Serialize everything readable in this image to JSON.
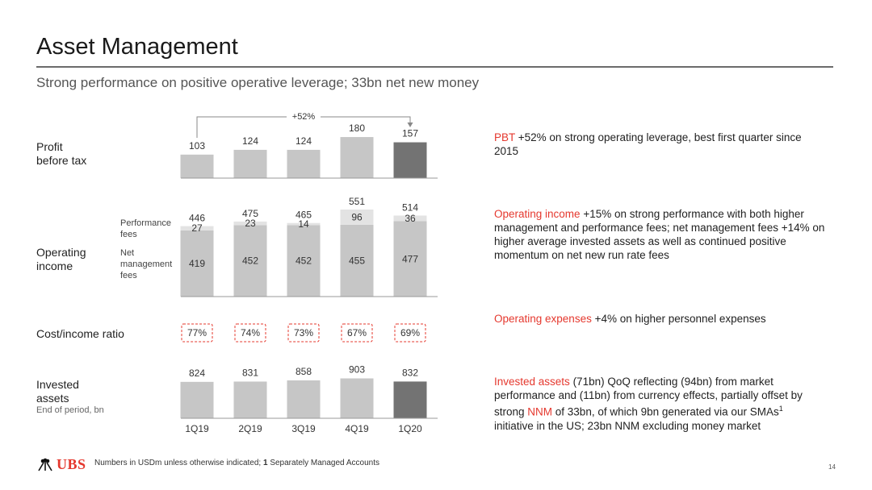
{
  "title": "Asset Management",
  "subtitle": "Strong performance on positive operative leverage; 33bn net new money",
  "row_labels": {
    "pbt": [
      "Profit",
      "before tax"
    ],
    "opinc": [
      "Operating",
      "income"
    ],
    "perf_fees": [
      "Performance",
      "fees"
    ],
    "net_mgmt_fees": [
      "Net",
      "management",
      "fees"
    ],
    "cir": "Cost/income ratio",
    "invested": [
      "Invested",
      "assets"
    ],
    "invested_sub": "End of period, bn"
  },
  "chart_data": [
    {
      "type": "bar",
      "categories": [
        "1Q19",
        "2Q19",
        "3Q19",
        "4Q19",
        "1Q20"
      ],
      "values": [
        103,
        124,
        124,
        180,
        157
      ],
      "annotation": "+52%",
      "highlight_last": true
    },
    {
      "type": "bar",
      "stacked": true,
      "categories": [
        "1Q19",
        "2Q19",
        "3Q19",
        "4Q19",
        "1Q20"
      ],
      "totals": [
        446,
        475,
        465,
        551,
        514
      ],
      "series": [
        {
          "name": "Net management fees",
          "values": [
            419,
            452,
            452,
            455,
            477
          ]
        },
        {
          "name": "Performance fees",
          "values": [
            27,
            23,
            14,
            96,
            36
          ]
        }
      ]
    },
    {
      "type": "table",
      "categories": [
        "1Q19",
        "2Q19",
        "3Q19",
        "4Q19",
        "1Q20"
      ],
      "values": [
        "77%",
        "74%",
        "73%",
        "67%",
        "69%"
      ]
    },
    {
      "type": "bar",
      "categories": [
        "1Q19",
        "2Q19",
        "3Q19",
        "4Q19",
        "1Q20"
      ],
      "values": [
        824,
        831,
        858,
        903,
        832
      ],
      "highlight_last": true
    }
  ],
  "comments": [
    {
      "highlight": "PBT",
      "text": " +52% on strong operating leverage, best first quarter since 2015"
    },
    {
      "highlight": "Operating income",
      "text": " +15% on strong performance with both higher management and performance fees; net management fees +14% on higher average invested assets as well as continued positive momentum on net new run rate fees"
    },
    {
      "highlight": "Operating expenses",
      "text": " +4% on higher personnel expenses"
    },
    {
      "highlight": "Invested assets",
      "text_a": " (71bn) QoQ reflecting (94bn) from market performance and (11bn) from currency effects, partially offset by strong ",
      "highlight2": "NNM",
      "text_b": " of 33bn, of which 9bn generated via our SMAs",
      "sup": "1",
      "text_c": " initiative in the US; 23bn NNM excluding money market"
    }
  ],
  "footer": {
    "logo": "UBS",
    "note_a": "Numbers in USDm unless otherwise indicated; ",
    "note_bold": "1",
    "note_b": " Separately Managed Accounts",
    "page": "14"
  },
  "colors": {
    "bar": "#c6c6c6",
    "bar_highlight": "#737373",
    "perf_fees": "#e3e3e3",
    "accent": "#e5382e"
  }
}
